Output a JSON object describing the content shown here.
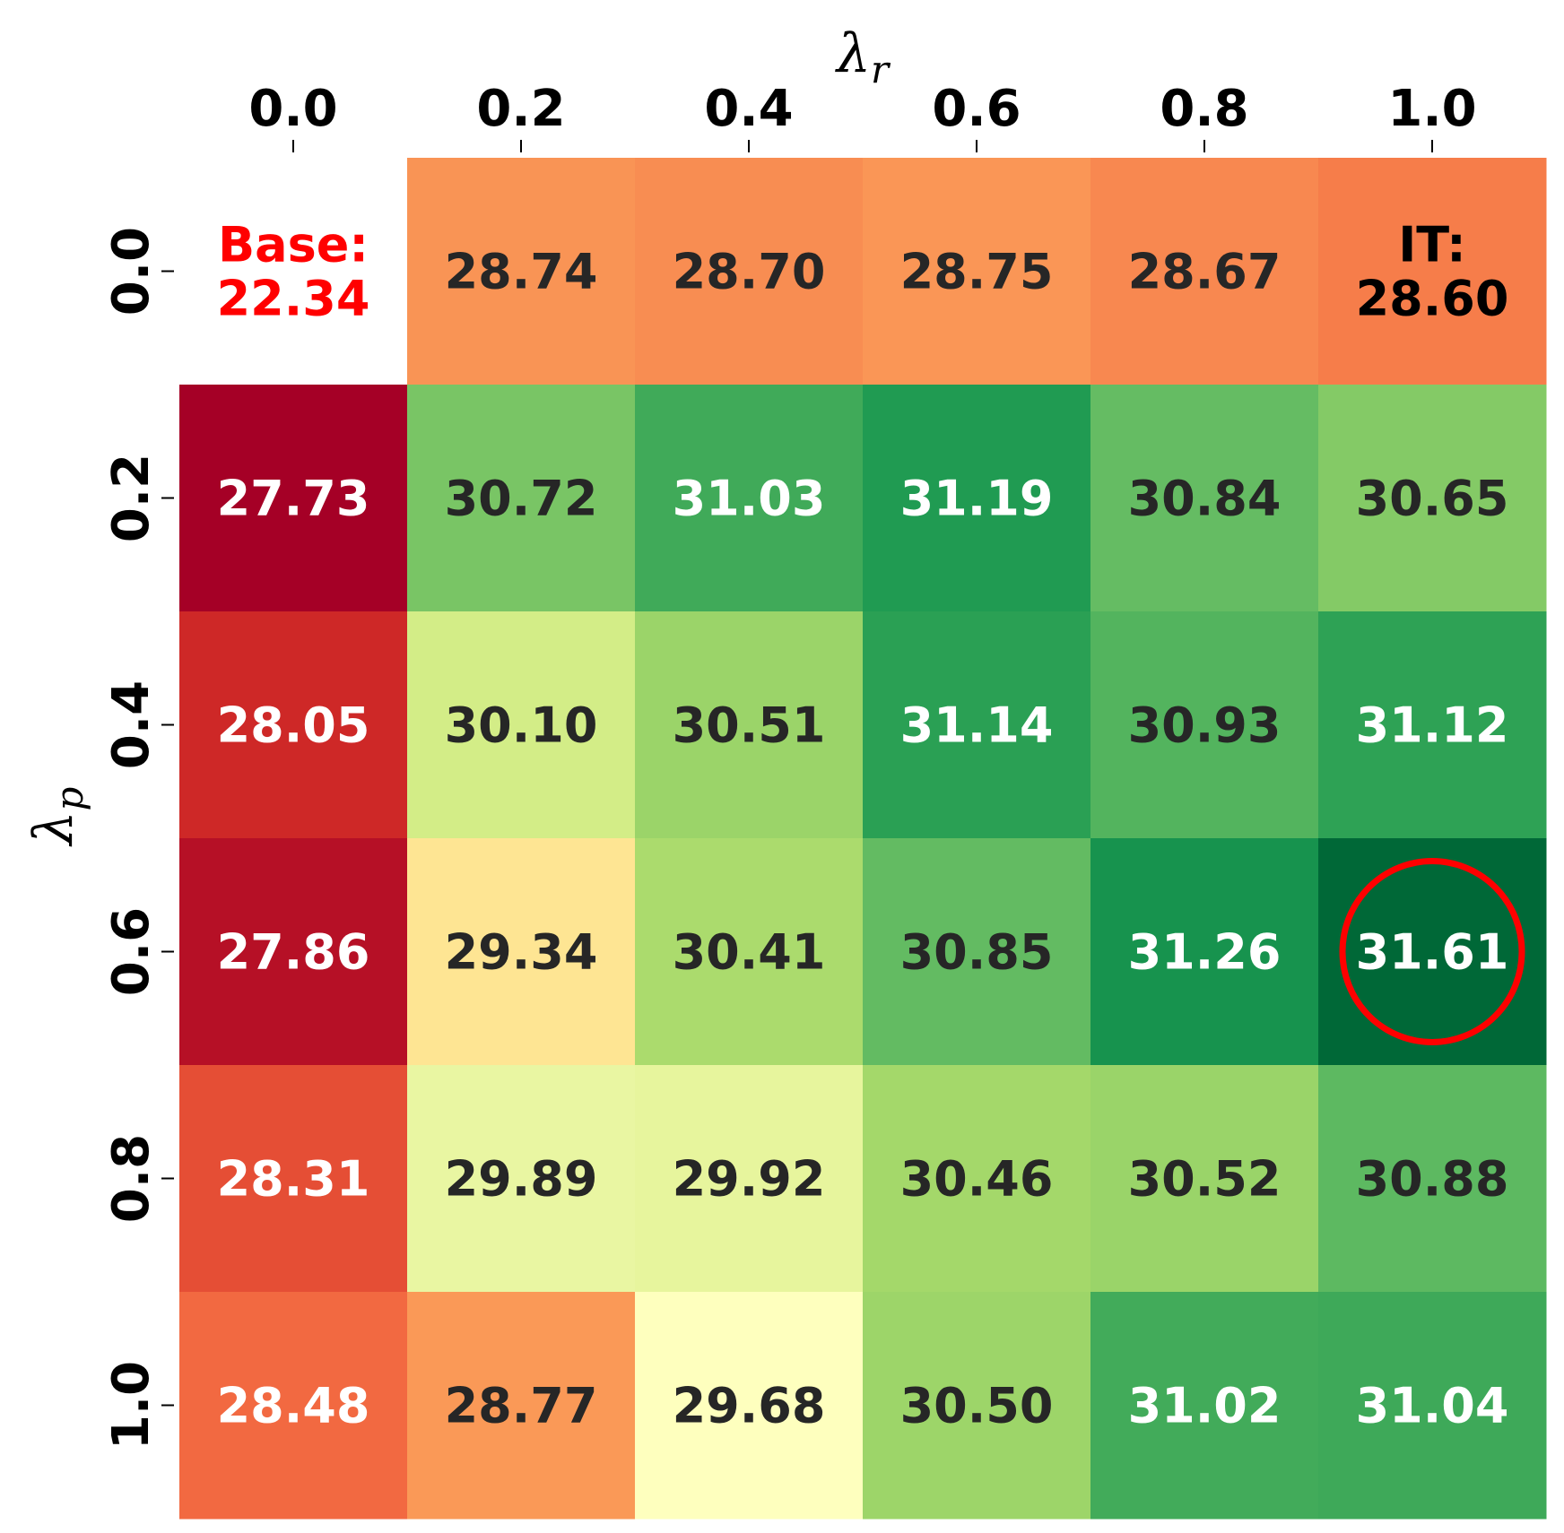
{
  "chart_data": {
    "type": "heatmap",
    "xlabel": "λ",
    "xlabel_sub": "r",
    "ylabel": "λ",
    "ylabel_sub": "p",
    "x_ticks": [
      "0.0",
      "0.2",
      "0.4",
      "0.6",
      "0.8",
      "1.0"
    ],
    "y_ticks": [
      "0.0",
      "0.2",
      "0.4",
      "0.6",
      "0.8",
      "1.0"
    ],
    "x_axis_position": "top",
    "colormap": "RdYlGn",
    "color_range": [
      27.73,
      31.61
    ],
    "values": [
      [
        22.34,
        28.74,
        28.7,
        28.75,
        28.67,
        28.6
      ],
      [
        27.73,
        30.72,
        31.03,
        31.19,
        30.84,
        30.65
      ],
      [
        28.05,
        30.1,
        30.51,
        31.14,
        30.93,
        31.12
      ],
      [
        27.86,
        29.34,
        30.41,
        30.85,
        31.26,
        31.61
      ],
      [
        28.31,
        29.89,
        29.92,
        30.46,
        30.52,
        30.88
      ],
      [
        28.48,
        28.77,
        29.68,
        30.5,
        31.02,
        31.04
      ]
    ],
    "cell_labels": [
      [
        "Base:\n22.34",
        "28.74",
        "28.70",
        "28.75",
        "28.67",
        "IT:\n28.60"
      ],
      [
        "27.73",
        "30.72",
        "31.03",
        "31.19",
        "30.84",
        "30.65"
      ],
      [
        "28.05",
        "30.10",
        "30.51",
        "31.14",
        "30.93",
        "31.12"
      ],
      [
        "27.86",
        "29.34",
        "30.41",
        "30.85",
        "31.26",
        "31.61"
      ],
      [
        "28.31",
        "29.89",
        "29.92",
        "30.46",
        "30.52",
        "30.88"
      ],
      [
        "28.48",
        "28.77",
        "29.68",
        "30.50",
        "31.02",
        "31.04"
      ]
    ],
    "special_cells": [
      {
        "row": 0,
        "col": 0,
        "fill": "#ffffff",
        "text_color": "#ff0000"
      },
      {
        "row": 0,
        "col": 5,
        "text_color": "#000000"
      }
    ],
    "highlight": {
      "row": 3,
      "col": 5,
      "shape": "circle",
      "color": "#ff0000"
    },
    "text_colors": {
      "dark": "#262626",
      "light": "#ffffff"
    }
  }
}
